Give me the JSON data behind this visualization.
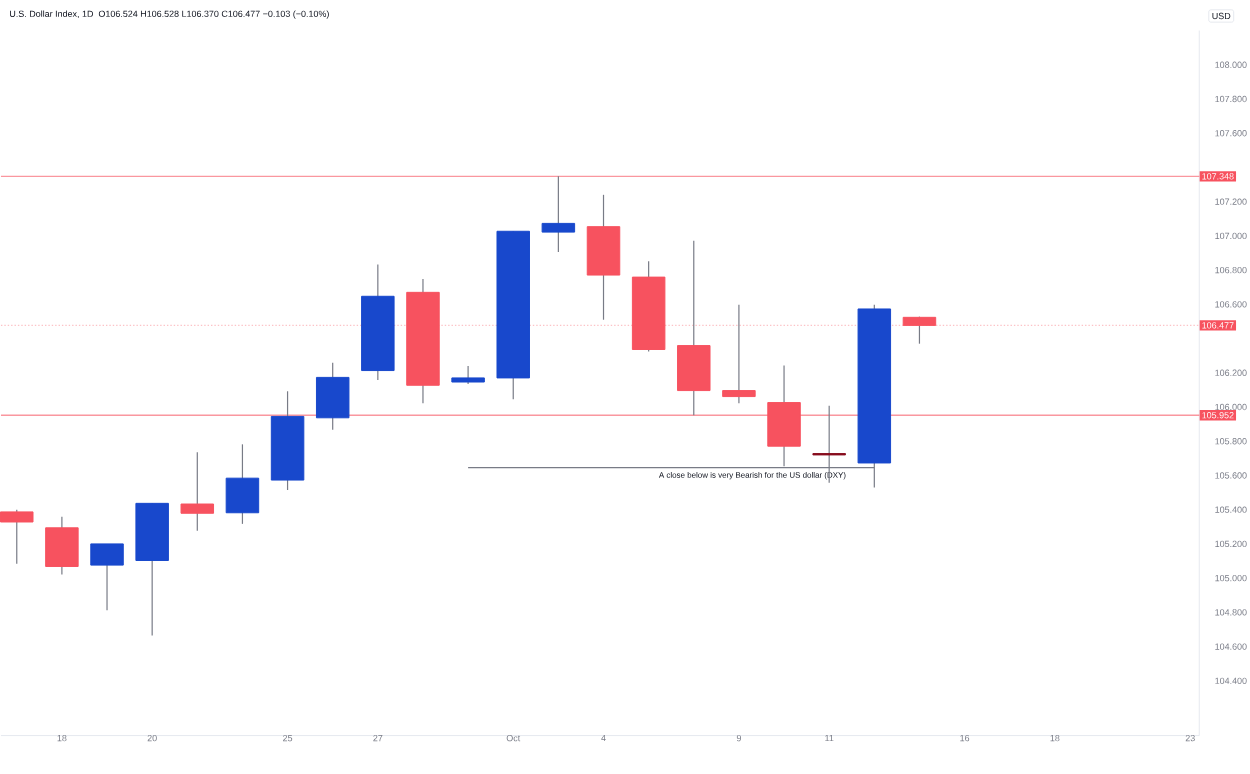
{
  "chart_data": {
    "type": "candlestick",
    "title": "U.S. Dollar Index, 1D",
    "subtitle": "O106.524 H106.528 L106.370 C106.477 −0.103 (−0.10%)",
    "ylabel": "USD",
    "categories": [
      null,
      "18",
      null,
      "20",
      null,
      null,
      "25",
      null,
      "27",
      null,
      null,
      "Oct",
      null,
      "4",
      null,
      null,
      "9",
      null,
      "11",
      null,
      null,
      "16",
      null,
      "18",
      null,
      null,
      "23"
    ],
    "ohlc": [
      [
        105.387,
        105.4,
        105.084,
        105.328
      ],
      [
        105.294,
        105.359,
        105.021,
        105.068
      ],
      [
        105.076,
        105.2,
        104.812,
        105.2
      ],
      [
        105.103,
        105.437,
        104.665,
        105.437
      ],
      [
        105.433,
        105.736,
        105.277,
        105.379
      ],
      [
        105.382,
        105.782,
        105.317,
        105.584
      ],
      [
        105.573,
        106.092,
        105.515,
        105.945
      ],
      [
        105.937,
        106.259,
        105.867,
        106.173
      ],
      [
        106.213,
        106.833,
        106.158,
        106.647
      ],
      [
        106.67,
        106.748,
        106.022,
        106.127
      ],
      [
        106.146,
        106.239,
        106.135,
        106.17
      ],
      [
        106.17,
        107.027,
        106.045,
        107.027
      ],
      [
        107.022,
        107.348,
        106.906,
        107.073
      ],
      [
        107.054,
        107.24,
        106.51,
        106.771
      ],
      [
        106.759,
        106.852,
        106.324,
        106.336
      ],
      [
        106.359,
        106.972,
        105.952,
        106.096
      ],
      [
        106.096,
        106.597,
        106.022,
        106.061
      ],
      [
        106.026,
        106.243,
        105.654,
        105.771
      ],
      [
        105.728,
        106.007,
        105.557,
        105.72
      ],
      [
        105.673,
        106.597,
        105.53,
        106.573
      ],
      [
        106.524,
        106.528,
        106.37,
        106.477
      ],
      null,
      null,
      null,
      null,
      null,
      null
    ],
    "colors": [
      "#f7525f",
      "#f7525f",
      "#1848cc",
      "#1848cc",
      "#f7525f",
      "#1848cc",
      "#1848cc",
      "#1848cc",
      "#1848cc",
      "#f7525f",
      "#1848cc",
      "#1848cc",
      "#1848cc",
      "#f7525f",
      "#f7525f",
      "#f7525f",
      "#f7525f",
      "#f7525f",
      "#880e1f",
      "#1848cc",
      "#f7525f",
      null,
      null,
      null,
      null,
      null,
      null
    ],
    "ylim": [
      104.08,
      108.2
    ],
    "yticks": [
      {
        "value": 104.4,
        "label": "104.400"
      },
      {
        "value": 104.6,
        "label": "104.600"
      },
      {
        "value": 104.8,
        "label": "104.800"
      },
      {
        "value": 105.0,
        "label": "105.000"
      },
      {
        "value": 105.2,
        "label": "105.200"
      },
      {
        "value": 105.4,
        "label": "105.400"
      },
      {
        "value": 105.6,
        "label": "105.600"
      },
      {
        "value": 105.8,
        "label": "105.800"
      },
      {
        "value": 106.0,
        "label": "106.000"
      },
      {
        "value": 106.2,
        "label": "106.200"
      },
      {
        "value": 106.6,
        "label": "106.600"
      },
      {
        "value": 106.8,
        "label": "106.800"
      },
      {
        "value": 107.0,
        "label": "107.000"
      },
      {
        "value": 107.2,
        "label": "107.200"
      },
      {
        "value": 107.6,
        "label": "107.600"
      },
      {
        "value": 107.8,
        "label": "107.800"
      },
      {
        "value": 108.0,
        "label": "108.000"
      }
    ],
    "ref_lines": [
      {
        "axis": "y",
        "value": 107.348,
        "label": "107.348",
        "color": "#f7525f",
        "line_style": "solid"
      },
      {
        "axis": "y",
        "value": 106.477,
        "label": "106.477",
        "color": "#f7525f",
        "line_style": "dotted"
      },
      {
        "axis": "y",
        "value": 105.952,
        "label": "105.952",
        "color": "#f7525f",
        "line_style": "solid"
      },
      {
        "axis": "y",
        "value": 105.646,
        "label": "A close below is very Bearish for the US dollar (DXY)",
        "color": "#787b86",
        "line_style": "solid"
      }
    ],
    "grid": false
  }
}
